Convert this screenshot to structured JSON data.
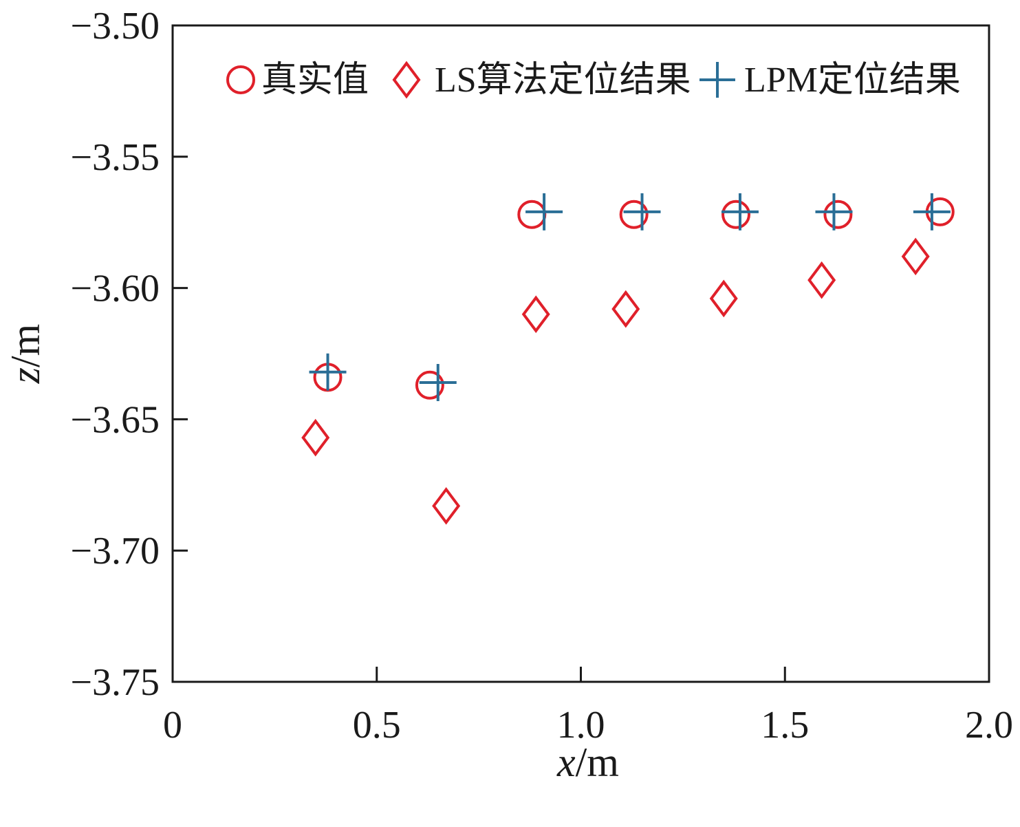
{
  "chart_data": {
    "type": "scatter",
    "xlabel": {
      "var": "x",
      "unit": "/m"
    },
    "ylabel": {
      "var": "z",
      "unit": "/m"
    },
    "xlim": [
      0,
      2.0
    ],
    "ylim": [
      -3.75,
      -3.5
    ],
    "x_ticks": [
      {
        "value": 0,
        "label": "0"
      },
      {
        "value": 0.5,
        "label": "0.5"
      },
      {
        "value": 1.0,
        "label": "1.0"
      },
      {
        "value": 1.5,
        "label": "1.5"
      },
      {
        "value": 2.0,
        "label": "2.0"
      }
    ],
    "y_ticks": [
      {
        "value": -3.5,
        "label": "−3.50"
      },
      {
        "value": -3.55,
        "label": "−3.55"
      },
      {
        "value": -3.6,
        "label": "−3.60"
      },
      {
        "value": -3.65,
        "label": "−3.65"
      },
      {
        "value": -3.7,
        "label": "−3.70"
      },
      {
        "value": -3.75,
        "label": "−3.75"
      }
    ],
    "grid": false,
    "legend": "top",
    "series": [
      {
        "name": "真实值",
        "marker": "circle",
        "color": "#e0202a",
        "points": [
          {
            "x": 0.38,
            "y": -3.634
          },
          {
            "x": 0.63,
            "y": -3.637
          },
          {
            "x": 0.88,
            "y": -3.572
          },
          {
            "x": 1.13,
            "y": -3.572
          },
          {
            "x": 1.38,
            "y": -3.572
          },
          {
            "x": 1.63,
            "y": -3.572
          },
          {
            "x": 1.88,
            "y": -3.571
          }
        ]
      },
      {
        "name": "LS算法定位结果",
        "marker": "diamond",
        "color": "#e0202a",
        "points": [
          {
            "x": 0.35,
            "y": -3.657
          },
          {
            "x": 0.67,
            "y": -3.683
          },
          {
            "x": 0.89,
            "y": -3.61
          },
          {
            "x": 1.11,
            "y": -3.608
          },
          {
            "x": 1.35,
            "y": -3.604
          },
          {
            "x": 1.59,
            "y": -3.597
          },
          {
            "x": 1.82,
            "y": -3.588
          }
        ]
      },
      {
        "name": "LPM定位结果",
        "marker": "plus",
        "color": "#2a6e96",
        "points": [
          {
            "x": 0.38,
            "y": -3.632
          },
          {
            "x": 0.65,
            "y": -3.636
          },
          {
            "x": 0.91,
            "y": -3.571
          },
          {
            "x": 1.15,
            "y": -3.571
          },
          {
            "x": 1.39,
            "y": -3.571
          },
          {
            "x": 1.62,
            "y": -3.571
          },
          {
            "x": 1.86,
            "y": -3.571
          }
        ]
      }
    ]
  }
}
